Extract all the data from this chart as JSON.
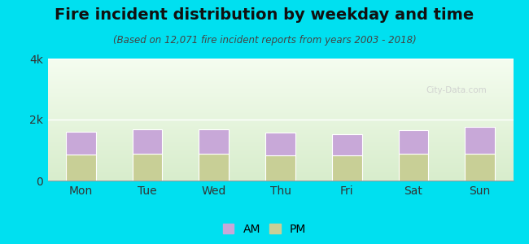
{
  "title": "Fire incident distribution by weekday and time",
  "subtitle": "(Based on 12,071 fire incident reports from years 2003 - 2018)",
  "categories": [
    "Mon",
    "Tue",
    "Wed",
    "Thu",
    "Fri",
    "Sat",
    "Sun"
  ],
  "pm_values": [
    850,
    870,
    870,
    820,
    830,
    870,
    870
  ],
  "am_values": [
    750,
    800,
    820,
    750,
    700,
    780,
    900
  ],
  "am_color": "#c8a8d8",
  "pm_color": "#c8cf96",
  "ylim": [
    0,
    4000
  ],
  "yticks": [
    0,
    2000,
    4000
  ],
  "ytick_labels": [
    "0",
    "2k",
    "4k"
  ],
  "outer_bg": "#00e0f0",
  "plot_bg_bottom": "#d8edcc",
  "plot_bg_top": "#f0faf0",
  "bar_width": 0.45,
  "legend_am": "AM",
  "legend_pm": "PM",
  "title_fontsize": 14,
  "subtitle_fontsize": 8.5,
  "tick_fontsize": 10,
  "legend_fontsize": 10
}
